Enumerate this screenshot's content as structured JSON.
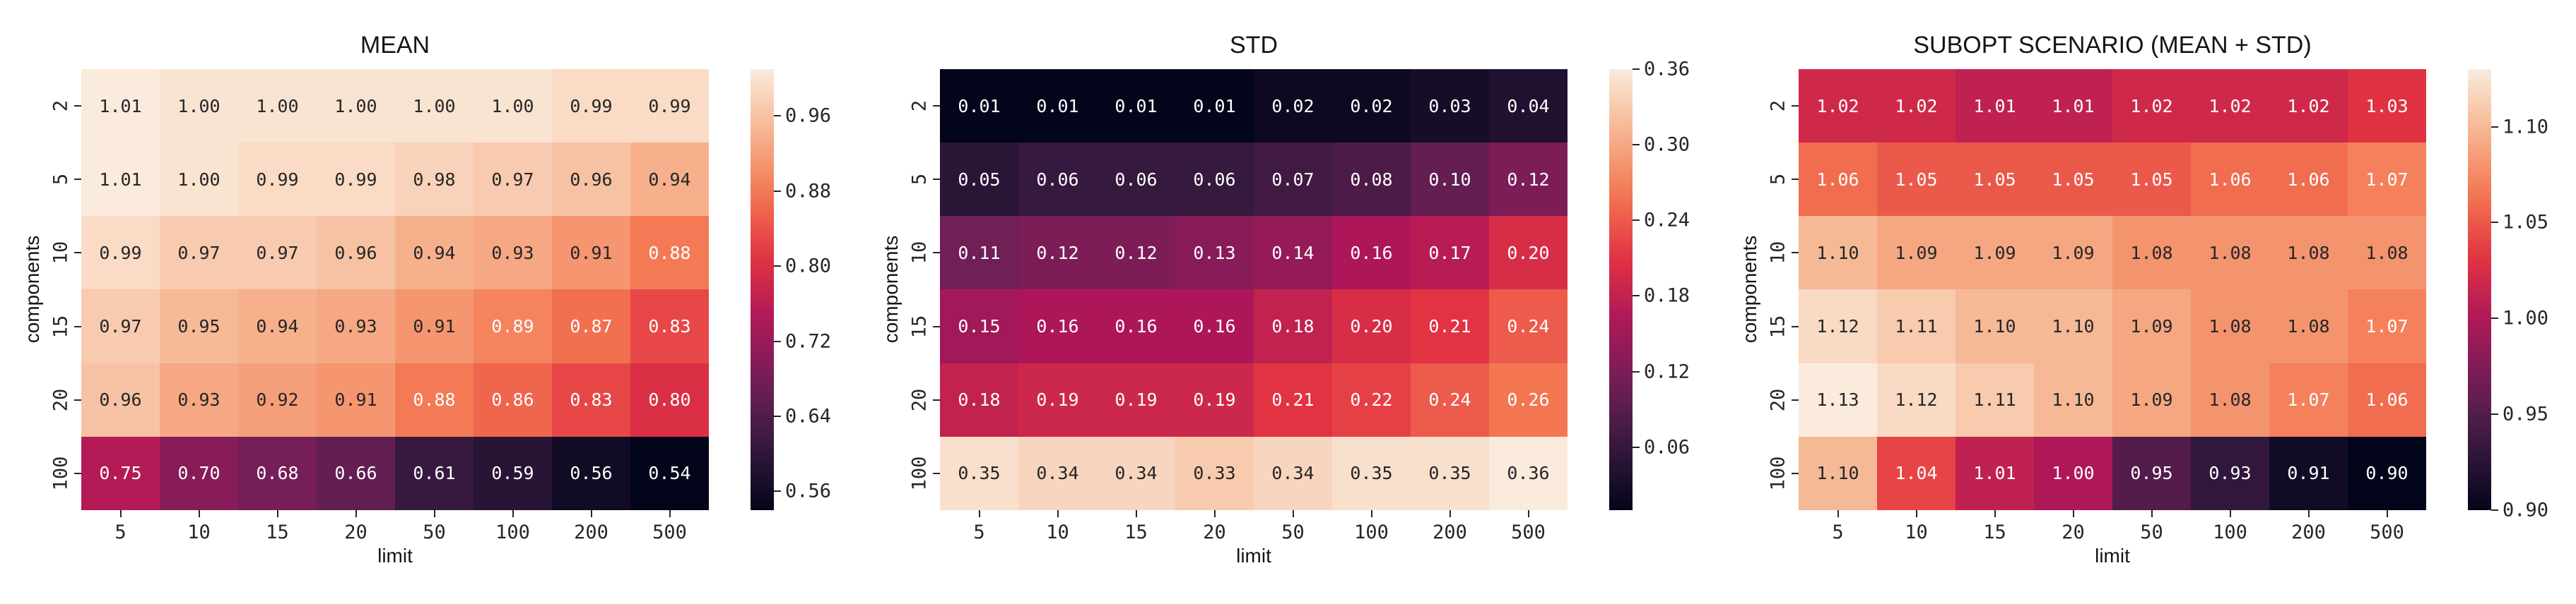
{
  "figure": {
    "background": "#ffffff"
  },
  "chart_data": [
    {
      "type": "heatmap",
      "title": "MEAN",
      "xlabel": "limit",
      "ylabel": "components",
      "x_tick_labels": [
        "5",
        "10",
        "15",
        "20",
        "50",
        "100",
        "200",
        "500"
      ],
      "y_tick_labels": [
        "2",
        "5",
        "10",
        "15",
        "20",
        "100"
      ],
      "values": [
        [
          "1.01",
          "1.00",
          "1.00",
          "1.00",
          "1.00",
          "1.00",
          "0.99",
          "0.99"
        ],
        [
          "1.01",
          "1.00",
          "0.99",
          "0.99",
          "0.98",
          "0.97",
          "0.96",
          "0.94"
        ],
        [
          "0.99",
          "0.97",
          "0.97",
          "0.96",
          "0.94",
          "0.93",
          "0.91",
          "0.88"
        ],
        [
          "0.97",
          "0.95",
          "0.94",
          "0.93",
          "0.91",
          "0.89",
          "0.87",
          "0.83"
        ],
        [
          "0.96",
          "0.93",
          "0.92",
          "0.91",
          "0.88",
          "0.86",
          "0.83",
          "0.80"
        ],
        [
          "0.75",
          "0.70",
          "0.68",
          "0.66",
          "0.61",
          "0.59",
          "0.56",
          "0.54"
        ]
      ],
      "vmin": 0.54,
      "vmax": 1.01,
      "colorbar_ticks": [
        "0.96",
        "0.88",
        "0.80",
        "0.72",
        "0.64",
        "0.56"
      ],
      "colormap": "rocket",
      "colorbar_position": "right",
      "grid": false
    },
    {
      "type": "heatmap",
      "title": "STD",
      "xlabel": "limit",
      "ylabel": "components",
      "x_tick_labels": [
        "5",
        "10",
        "15",
        "20",
        "50",
        "100",
        "200",
        "500"
      ],
      "y_tick_labels": [
        "2",
        "5",
        "10",
        "15",
        "20",
        "100"
      ],
      "values": [
        [
          "0.01",
          "0.01",
          "0.01",
          "0.01",
          "0.02",
          "0.02",
          "0.03",
          "0.04"
        ],
        [
          "0.05",
          "0.06",
          "0.06",
          "0.06",
          "0.07",
          "0.08",
          "0.10",
          "0.12"
        ],
        [
          "0.11",
          "0.12",
          "0.12",
          "0.13",
          "0.14",
          "0.16",
          "0.17",
          "0.20"
        ],
        [
          "0.15",
          "0.16",
          "0.16",
          "0.16",
          "0.18",
          "0.20",
          "0.21",
          "0.24"
        ],
        [
          "0.18",
          "0.19",
          "0.19",
          "0.19",
          "0.21",
          "0.22",
          "0.24",
          "0.26"
        ],
        [
          "0.35",
          "0.34",
          "0.34",
          "0.33",
          "0.34",
          "0.35",
          "0.35",
          "0.36"
        ]
      ],
      "vmin": 0.01,
      "vmax": 0.36,
      "colorbar_ticks": [
        "0.36",
        "0.30",
        "0.24",
        "0.18",
        "0.12",
        "0.06"
      ],
      "colormap": "rocket",
      "colorbar_position": "right",
      "grid": false
    },
    {
      "type": "heatmap",
      "title": "SUBOPT SCENARIO (MEAN + STD)",
      "xlabel": "limit",
      "ylabel": "components",
      "x_tick_labels": [
        "5",
        "10",
        "15",
        "20",
        "50",
        "100",
        "200",
        "500"
      ],
      "y_tick_labels": [
        "2",
        "5",
        "10",
        "15",
        "20",
        "100"
      ],
      "values": [
        [
          "1.02",
          "1.02",
          "1.01",
          "1.01",
          "1.02",
          "1.02",
          "1.02",
          "1.03"
        ],
        [
          "1.06",
          "1.05",
          "1.05",
          "1.05",
          "1.05",
          "1.06",
          "1.06",
          "1.07"
        ],
        [
          "1.10",
          "1.09",
          "1.09",
          "1.09",
          "1.08",
          "1.08",
          "1.08",
          "1.08"
        ],
        [
          "1.12",
          "1.11",
          "1.10",
          "1.10",
          "1.09",
          "1.08",
          "1.08",
          "1.07"
        ],
        [
          "1.13",
          "1.12",
          "1.11",
          "1.10",
          "1.09",
          "1.08",
          "1.07",
          "1.06"
        ],
        [
          "1.10",
          "1.04",
          "1.01",
          "1.00",
          "0.95",
          "0.93",
          "0.91",
          "0.90"
        ]
      ],
      "vmin": 0.9,
      "vmax": 1.13,
      "colorbar_ticks": [
        "1.10",
        "1.05",
        "1.00",
        "0.95",
        "0.90"
      ],
      "colormap": "rocket",
      "colorbar_position": "right",
      "grid": false
    }
  ],
  "colors": {
    "background": "#ffffff",
    "annotation_dark": "#262626",
    "annotation_light": "#ffffff",
    "tick_color": "#262626",
    "rocket_anchors": [
      {
        "t": 0.0,
        "hex": "#03051A"
      },
      {
        "t": 0.1429,
        "hex": "#35193E"
      },
      {
        "t": 0.2857,
        "hex": "#701F57"
      },
      {
        "t": 0.4286,
        "hex": "#AD1759"
      },
      {
        "t": 0.5714,
        "hex": "#E13342"
      },
      {
        "t": 0.7143,
        "hex": "#F37651"
      },
      {
        "t": 0.8571,
        "hex": "#F6B48F"
      },
      {
        "t": 1.0,
        "hex": "#FAEBDD"
      }
    ]
  }
}
